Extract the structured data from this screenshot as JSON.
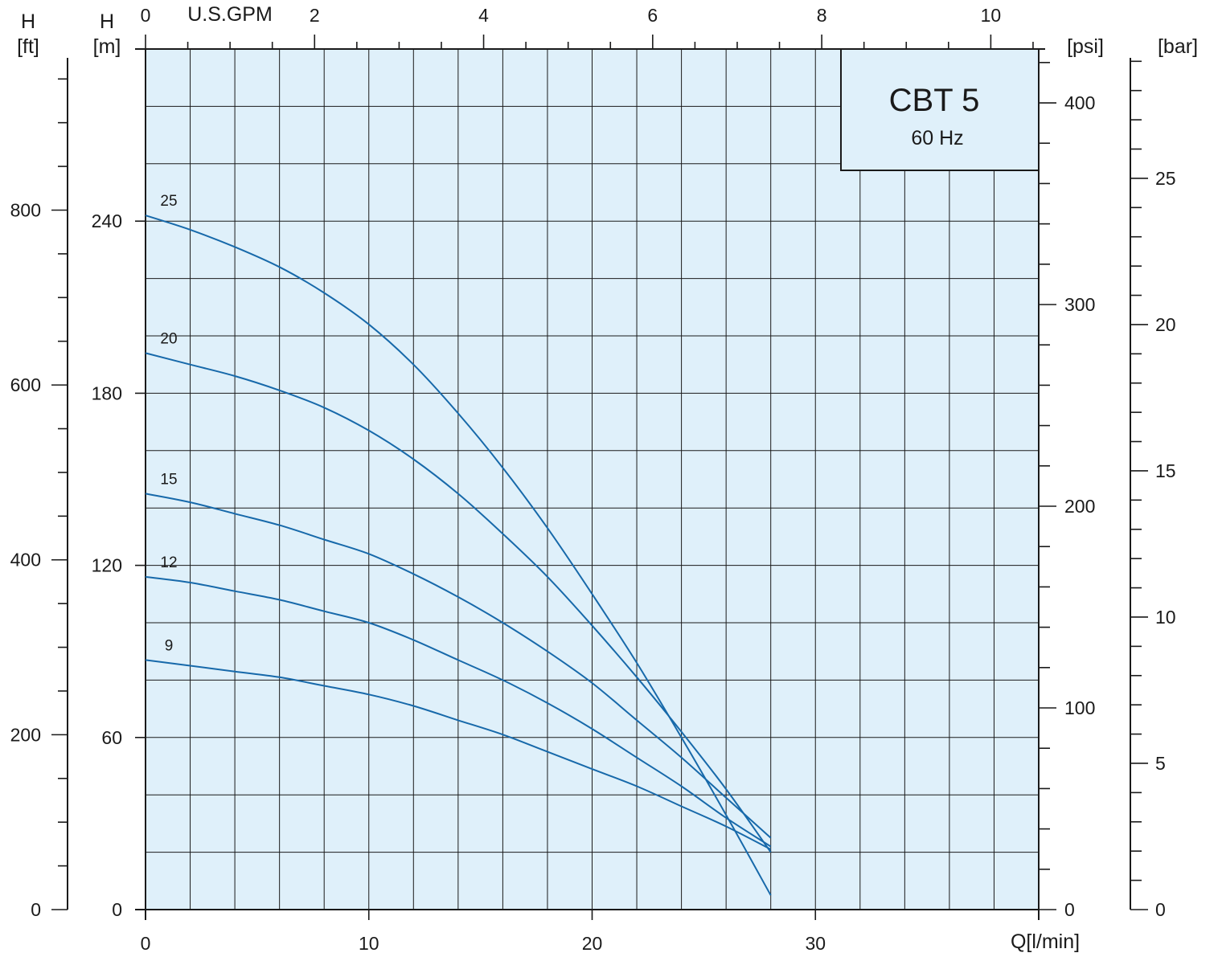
{
  "chart_data": {
    "type": "line",
    "title": "CBT 5",
    "subtitle": "60 Hz",
    "grid": true,
    "x": {
      "label": "Q[l/min]",
      "range": [
        0,
        40
      ],
      "ticks": [
        0,
        10,
        20,
        30
      ],
      "minor_step": 2
    },
    "x_top": {
      "label": "U.S.GPM",
      "range": [
        0,
        10.567
      ],
      "ticks": [
        0,
        2,
        4,
        6,
        8,
        10
      ],
      "minor_step": 0.5
    },
    "y_m": {
      "label": "H",
      "unit": "[m]",
      "range": [
        0,
        300
      ],
      "ticks": [
        0,
        60,
        120,
        180,
        240
      ],
      "grid_step": 20
    },
    "y_ft": {
      "label": "H",
      "unit": "[ft]",
      "range": [
        0,
        984.25
      ],
      "ticks": [
        0,
        200,
        400,
        600,
        800
      ],
      "minor_step": 50
    },
    "y_psi": {
      "label": "[psi]",
      "range": [
        0,
        426.7
      ],
      "ticks": [
        0,
        100,
        200,
        300,
        400
      ],
      "minor_step": 20
    },
    "y_bar": {
      "label": "[bar]",
      "range": [
        0,
        29.42
      ],
      "ticks": [
        0,
        5,
        10,
        15,
        20,
        25
      ],
      "minor_step": 1
    },
    "series": [
      {
        "name": "25",
        "color": "#1769aa",
        "points": [
          [
            0,
            242
          ],
          [
            2,
            237
          ],
          [
            4,
            231
          ],
          [
            6,
            224
          ],
          [
            8,
            215
          ],
          [
            10,
            204
          ],
          [
            12,
            190
          ],
          [
            14,
            173
          ],
          [
            16,
            154
          ],
          [
            18,
            133
          ],
          [
            20,
            110
          ],
          [
            22,
            86
          ],
          [
            24,
            60
          ],
          [
            26,
            33
          ],
          [
            28,
            5
          ]
        ]
      },
      {
        "name": "20",
        "color": "#1769aa",
        "points": [
          [
            0,
            194
          ],
          [
            2,
            190
          ],
          [
            4,
            186
          ],
          [
            6,
            181
          ],
          [
            8,
            175
          ],
          [
            10,
            167
          ],
          [
            12,
            157
          ],
          [
            14,
            145
          ],
          [
            16,
            131
          ],
          [
            18,
            116
          ],
          [
            20,
            99
          ],
          [
            22,
            81
          ],
          [
            24,
            62
          ],
          [
            26,
            42
          ],
          [
            28,
            20
          ]
        ]
      },
      {
        "name": "15",
        "color": "#1769aa",
        "points": [
          [
            0,
            145
          ],
          [
            2,
            142
          ],
          [
            4,
            138
          ],
          [
            6,
            134
          ],
          [
            8,
            129
          ],
          [
            10,
            124
          ],
          [
            12,
            117
          ],
          [
            14,
            109
          ],
          [
            16,
            100
          ],
          [
            18,
            90
          ],
          [
            20,
            79
          ],
          [
            22,
            66
          ],
          [
            24,
            53
          ],
          [
            26,
            39
          ],
          [
            28,
            25
          ]
        ]
      },
      {
        "name": "12",
        "color": "#1769aa",
        "points": [
          [
            0,
            116
          ],
          [
            2,
            114
          ],
          [
            4,
            111
          ],
          [
            6,
            108
          ],
          [
            8,
            104
          ],
          [
            10,
            100
          ],
          [
            12,
            94
          ],
          [
            14,
            87
          ],
          [
            16,
            80
          ],
          [
            18,
            72
          ],
          [
            20,
            63
          ],
          [
            22,
            53
          ],
          [
            24,
            43
          ],
          [
            26,
            32
          ],
          [
            28,
            22
          ]
        ]
      },
      {
        "name": "9",
        "color": "#1769aa",
        "points": [
          [
            0,
            87
          ],
          [
            2,
            85
          ],
          [
            4,
            83
          ],
          [
            6,
            81
          ],
          [
            8,
            78
          ],
          [
            10,
            75
          ],
          [
            12,
            71
          ],
          [
            14,
            66
          ],
          [
            16,
            61
          ],
          [
            18,
            55
          ],
          [
            20,
            49
          ],
          [
            22,
            43
          ],
          [
            24,
            36
          ],
          [
            26,
            29
          ],
          [
            28,
            21
          ]
        ]
      }
    ]
  }
}
